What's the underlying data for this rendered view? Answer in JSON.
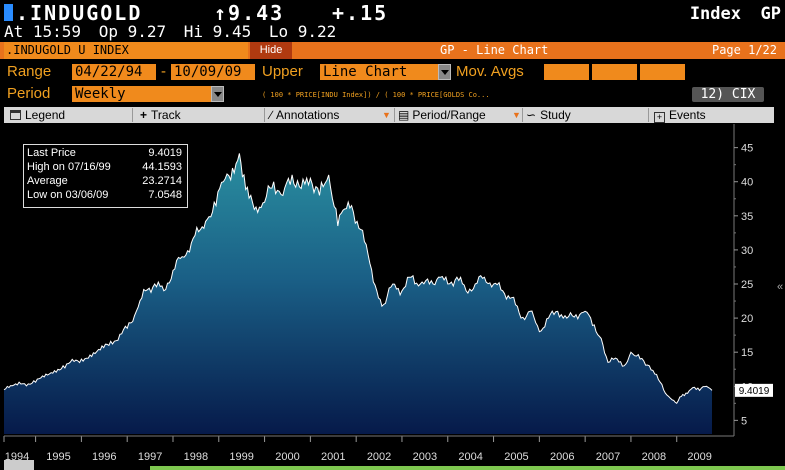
{
  "header": {
    "ticker": ".INDUGOLD",
    "price": "↑9.43",
    "change": "+.15",
    "index_label": "Index",
    "function_code": "GP",
    "time": "At 15:59",
    "open": "Op 9.27",
    "high": "Hi 9.45",
    "low": "Lo 9.22"
  },
  "titlebar": {
    "security": ".INDUGOLD U INDEX",
    "hide_label": "Hide",
    "title": "GP - Line Chart",
    "page": "Page 1/22"
  },
  "controls": {
    "range_label": "Range",
    "range_start": "04/22/94",
    "range_dash": "-",
    "range_end": "10/09/09",
    "upper_label": "Upper",
    "upper_value": "Line Chart",
    "mov_avgs_label": "Mov. Avgs",
    "period_label": "Period",
    "period_value": "Weekly",
    "formula": "( 100 * PRICE[INDU Index]) / ( 100 * PRICE[GOLDS Co...",
    "cix_label": "12)  CIX"
  },
  "toolbar": {
    "legend": "Legend",
    "track": "Track",
    "annotations": "Annotations",
    "period_range": "Period/Range",
    "study": "Study",
    "events": "Events"
  },
  "stats": {
    "last_label": "Last Price",
    "last_value": "9.4019",
    "high_label": "High on  07/16/99",
    "high_value": "44.1593",
    "avg_label": "Average",
    "avg_value": "23.2714",
    "low_label": "Low on  03/06/09",
    "low_value": "7.0548"
  },
  "last_price_tag": "9.4019",
  "chart_data": {
    "type": "area",
    "x_start": 1994.31,
    "x_end": 2009.77,
    "ylim": [
      3,
      47
    ],
    "y_ticks": [
      5,
      10,
      15,
      20,
      25,
      30,
      35,
      40,
      45
    ],
    "x_ticks": [
      "1994",
      "1995",
      "1996",
      "1997",
      "1998",
      "1999",
      "2000",
      "2001",
      "2002",
      "2003",
      "2004",
      "2005",
      "2006",
      "2007",
      "2008",
      "2009"
    ],
    "x": [
      1994.31,
      1994.6,
      1995.0,
      1995.3,
      1995.6,
      1996.0,
      1996.3,
      1996.6,
      1997.0,
      1997.2,
      1997.4,
      1997.6,
      1997.8,
      1998.0,
      1998.2,
      1998.4,
      1998.6,
      1998.75,
      1998.9,
      1999.1,
      1999.3,
      1999.45,
      1999.55,
      1999.7,
      1999.85,
      2000.0,
      2000.2,
      2000.4,
      2000.6,
      2000.8,
      2001.0,
      2001.2,
      2001.4,
      2001.6,
      2001.75,
      2001.9,
      2002.1,
      2002.3,
      2002.45,
      2002.6,
      2002.8,
      2003.0,
      2003.2,
      2003.4,
      2003.6,
      2003.8,
      2004.0,
      2004.2,
      2004.4,
      2004.6,
      2004.8,
      2005.0,
      2005.2,
      2005.4,
      2005.6,
      2005.8,
      2006.0,
      2006.2,
      2006.4,
      2006.6,
      2006.8,
      2007.0,
      2007.2,
      2007.35,
      2007.5,
      2007.7,
      2007.85,
      2008.0,
      2008.2,
      2008.4,
      2008.6,
      2008.75,
      2008.9,
      2009.0,
      2009.1,
      2009.2,
      2009.35,
      2009.5,
      2009.65,
      2009.77
    ],
    "values": [
      9.5,
      10.2,
      10.6,
      11.8,
      13.0,
      14.0,
      14.8,
      16.0,
      18.5,
      21.0,
      24.0,
      25.0,
      24.0,
      27.0,
      29.0,
      31.0,
      33.0,
      34.5,
      37.0,
      40.0,
      42.0,
      44.16,
      41.0,
      38.0,
      35.5,
      37.0,
      40.0,
      38.0,
      41.0,
      39.0,
      40.5,
      38.0,
      41.0,
      33.5,
      36.0,
      36.5,
      33.0,
      28.0,
      24.0,
      22.0,
      25.0,
      24.0,
      26.0,
      25.0,
      25.0,
      26.0,
      25.0,
      26.0,
      24.0,
      25.0,
      26.0,
      25.0,
      24.0,
      23.0,
      20.0,
      21.0,
      18.0,
      20.0,
      21.0,
      20.0,
      20.5,
      21.0,
      19.0,
      17.0,
      13.5,
      14.0,
      13.0,
      15.0,
      14.0,
      13.0,
      11.0,
      9.0,
      8.0,
      7.5,
      8.5,
      9.0,
      9.8,
      9.4,
      10.0,
      9.4
    ]
  },
  "colors": {
    "orange": "#f08a1c",
    "label_orange": "#f0a020",
    "chart_top": "#2a8fa0",
    "chart_bottom": "#061a4a",
    "line": "#ffffff"
  }
}
